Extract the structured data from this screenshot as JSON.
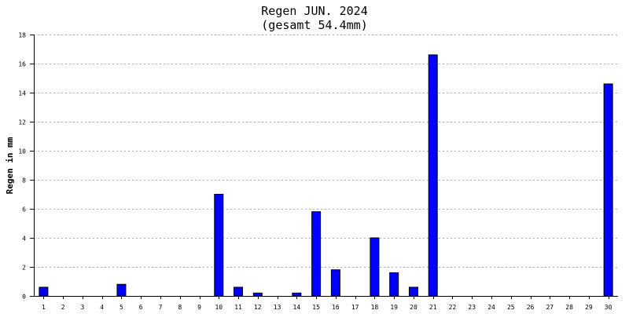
{
  "chart_data": {
    "type": "bar",
    "title": "Regen JUN. 2024",
    "subtitle": "(gesamt 54.4mm)",
    "xlabel": "",
    "ylabel": "Regen in mm",
    "ylim": [
      0,
      18
    ],
    "yticks": [
      0,
      2,
      4,
      6,
      8,
      10,
      12,
      14,
      16,
      18
    ],
    "grid": true,
    "categories": [
      "1",
      "2",
      "3",
      "4",
      "5",
      "6",
      "7",
      "8",
      "9",
      "10",
      "11",
      "12",
      "13",
      "14",
      "15",
      "16",
      "17",
      "18",
      "19",
      "20",
      "21",
      "22",
      "23",
      "24",
      "25",
      "26",
      "27",
      "28",
      "29",
      "30"
    ],
    "values": [
      0.6,
      0,
      0,
      0,
      0.8,
      0,
      0,
      0,
      0,
      7.0,
      0.6,
      0.2,
      0,
      0.2,
      5.8,
      1.8,
      0,
      4.0,
      1.6,
      0.6,
      16.6,
      0,
      0,
      0,
      0,
      0,
      0,
      0,
      0,
      14.6
    ],
    "colors": {
      "bar_fill": "#0000ff",
      "bar_stroke": "#000000",
      "grid": "#aaaaaa",
      "axis": "#000000"
    }
  }
}
